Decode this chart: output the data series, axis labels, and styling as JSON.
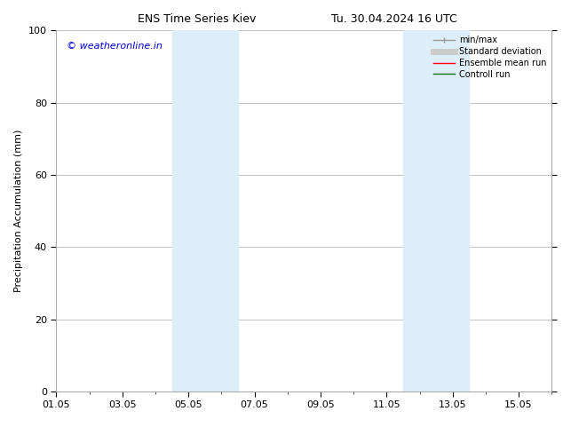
{
  "title_left": "ENS Time Series Kiev",
  "title_right": "Tu. 30.04.2024 16 UTC",
  "ylabel": "Precipitation Accumulation (mm)",
  "watermark": "© weatheronline.in",
  "ylim": [
    0,
    100
  ],
  "yticks": [
    0,
    20,
    40,
    60,
    80,
    100
  ],
  "xtick_labels": [
    "01.05",
    "03.05",
    "05.05",
    "07.05",
    "09.05",
    "11.05",
    "13.05",
    "15.05"
  ],
  "xtick_positions": [
    0,
    2,
    4,
    6,
    8,
    10,
    12,
    14
  ],
  "xlim": [
    0,
    15
  ],
  "shaded_regions": [
    {
      "xmin": 3.5,
      "xmax": 5.5,
      "color": "#ddeef8"
    },
    {
      "xmin": 10.5,
      "xmax": 12.5,
      "color": "#ddeef8"
    }
  ],
  "background_color": "#ffffff",
  "plot_bg_color": "#ffffff",
  "grid_color": "#aaaaaa",
  "title_fontsize": 9,
  "axis_label_fontsize": 8,
  "tick_fontsize": 8,
  "watermark_color": "#0000dd",
  "watermark_fontsize": 8,
  "legend_entries": [
    {
      "label": "min/max",
      "color": "#999999",
      "lw": 1.0,
      "ls": "-",
      "type": "errorbar"
    },
    {
      "label": "Standard deviation",
      "color": "#cccccc",
      "lw": 5,
      "ls": "-",
      "type": "line"
    },
    {
      "label": "Ensemble mean run",
      "color": "#ff0000",
      "lw": 1.0,
      "ls": "-",
      "type": "line"
    },
    {
      "label": "Controll run",
      "color": "#007700",
      "lw": 1.0,
      "ls": "-",
      "type": "line"
    }
  ]
}
